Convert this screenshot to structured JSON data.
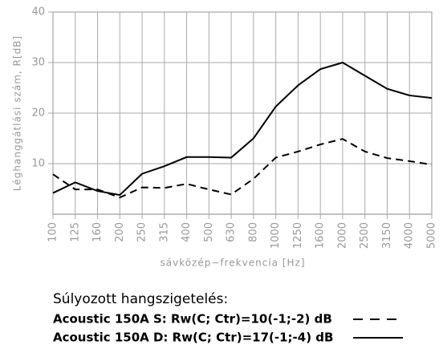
{
  "chart_data": {
    "type": "line",
    "y_label": "Léghanggátlási szám, R[dB]",
    "x_label": "sávközép−frekvencia [Hz]",
    "legend_title": "Súlyozott hangszigetelés:",
    "categories": [
      "100",
      "125",
      "160",
      "200",
      "250",
      "315",
      "400",
      "500",
      "630",
      "800",
      "1000",
      "1250",
      "1600",
      "2000",
      "2500",
      "3150",
      "4000",
      "5000"
    ],
    "series": [
      {
        "name": "Acoustic 150A S: Rw(C; Ctr)=10(-1;-2) dB",
        "color": "#000000",
        "dash": true,
        "values": [
          7.9,
          4.9,
          4.9,
          3.3,
          5.3,
          5.2,
          6.0,
          4.9,
          3.9,
          7.0,
          11.2,
          12.4,
          13.8,
          14.9,
          12.4,
          11.1,
          10.5,
          9.8
        ]
      },
      {
        "name": "Acoustic 150A D: Rw(C; Ctr)=17(-1;-4) dB",
        "color": "#000000",
        "dash": false,
        "values": [
          4.2,
          6.3,
          4.6,
          3.8,
          8.0,
          9.5,
          11.3,
          11.3,
          11.2,
          15.0,
          21.3,
          25.5,
          28.7,
          30.0,
          27.4,
          24.8,
          23.5,
          23.0
        ]
      }
    ],
    "ylim": [
      0,
      40
    ],
    "yticks": [
      10,
      20,
      30,
      40
    ],
    "grid": true
  }
}
